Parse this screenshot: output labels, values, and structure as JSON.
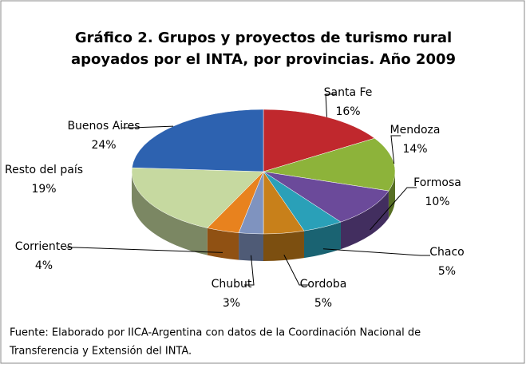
{
  "chart_data": {
    "type": "pie3d",
    "title": [
      "Gráfico 2. Grupos y proyectos de turismo rural",
      "apoyados por el INTA, por provincias.  Año 2009"
    ],
    "categories": [
      "Santa Fe",
      "Mendoza",
      "Formosa",
      "Chaco",
      "Cordoba",
      "Chubut",
      "Corrientes",
      "Resto del país",
      "Buenos Aires"
    ],
    "values": [
      16,
      14,
      10,
      5,
      5,
      3,
      4,
      19,
      24
    ],
    "value_labels": [
      "16%",
      "14%",
      "10%",
      "5%",
      "5%",
      "3%",
      "4%",
      "19%",
      "24%"
    ],
    "colors": [
      "#c0282d",
      "#8db33a",
      "#6b4a9a",
      "#2aa0b8",
      "#c8801a",
      "#7f93bf",
      "#e8821e",
      "#c6d9a0",
      "#2d62b0"
    ],
    "source": [
      "Fuente: Elaborado por IICA-Argentina con datos de la Coordinación Nacional de",
      "Transferencia y Extensión del INTA."
    ]
  }
}
